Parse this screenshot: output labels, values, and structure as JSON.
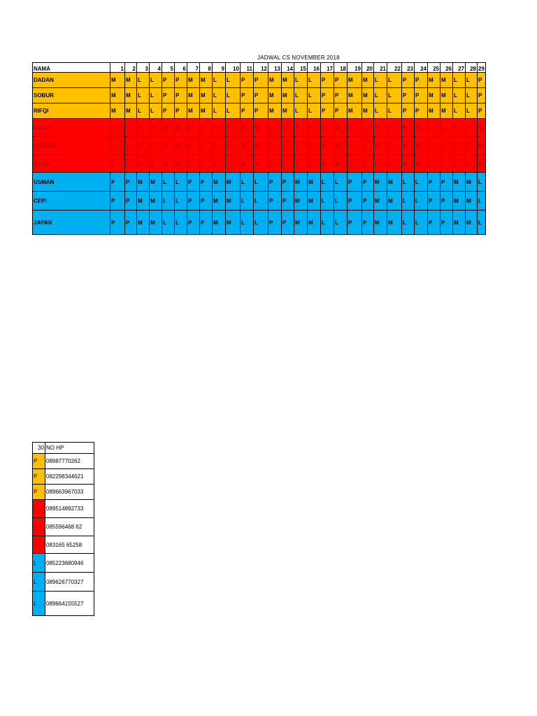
{
  "title": "JADWAL CS NOVEMBER 2018",
  "header": {
    "name_label": "NAMA",
    "days": [
      "1",
      "2",
      "3",
      "4",
      "5",
      "6",
      "7",
      "8",
      "9",
      "10",
      "11",
      "12",
      "13",
      "14",
      "15",
      "16",
      "17",
      "18",
      "19",
      "20",
      "21",
      "22",
      "23",
      "24",
      "25",
      "26",
      "27",
      "28",
      "29"
    ]
  },
  "colors": {
    "orange": "#ffc000",
    "red": "#ff0000",
    "blue": "#00b0f0"
  },
  "rows": [
    {
      "name": "DADAN",
      "color": "orange",
      "shifts": [
        "M",
        "M",
        "L",
        "L",
        "P",
        "P",
        "M",
        "M",
        "L",
        "L",
        "P",
        "P",
        "M",
        "M",
        "L",
        "L",
        "P",
        "P",
        "M",
        "M",
        "L",
        "L",
        "P",
        "P",
        "M",
        "M",
        "L",
        "L",
        "P"
      ]
    },
    {
      "name": "SOBUR",
      "color": "orange",
      "shifts": [
        "M",
        "M",
        "L",
        "L",
        "P",
        "P",
        "M",
        "M",
        "L",
        "L",
        "P",
        "P",
        "M",
        "M",
        "L",
        "L",
        "P",
        "P",
        "M",
        "M",
        "L",
        "L",
        "P",
        "P",
        "M",
        "M",
        "L",
        "L",
        "P"
      ]
    },
    {
      "name": "RIFQI",
      "color": "orange",
      "shifts": [
        "M",
        "M",
        "L",
        "L",
        "P",
        "P",
        "M",
        "M",
        "L",
        "L",
        "P",
        "P",
        "M",
        "M",
        "L",
        "L",
        "P",
        "P",
        "M",
        "M",
        "L",
        "L",
        "P",
        "P",
        "M",
        "M",
        "L",
        "L",
        "P"
      ]
    },
    {
      "name": "DENDI",
      "color": "red",
      "shifts": [
        "L",
        "L",
        "P",
        "P",
        "M",
        "M",
        "L",
        "L",
        "P",
        "P",
        "M",
        "M",
        "L",
        "L",
        "P",
        "P",
        "M",
        "M",
        "L",
        "L",
        "P",
        "P",
        "M",
        "M",
        "L",
        "L",
        "P",
        "P",
        "M"
      ]
    },
    {
      "name": "ENJANG",
      "color": "red",
      "shifts": [
        "L",
        "L",
        "P",
        "P",
        "M",
        "M",
        "L",
        "L",
        "P",
        "P",
        "M",
        "M",
        "L",
        "L",
        "P",
        "P",
        "M",
        "M",
        "L",
        "L",
        "P",
        "P",
        "M",
        "M",
        "L",
        "L",
        "P",
        "P",
        "M"
      ]
    },
    {
      "name": "AGUS",
      "color": "red",
      "shifts": [
        "L",
        "L",
        "P",
        "P",
        "M",
        "M",
        "L",
        "L",
        "P",
        "P",
        "M",
        "M",
        "L",
        "L",
        "P",
        "P",
        "M",
        "M",
        "L",
        "L",
        "P",
        "P",
        "M",
        "M",
        "L",
        "L",
        "P",
        "P",
        "M"
      ]
    },
    {
      "name": "USMAN",
      "color": "blue",
      "shifts": [
        "P",
        "P",
        "M",
        "M",
        "L",
        "L",
        "P",
        "P",
        "M",
        "M",
        "L",
        "L",
        "P",
        "P",
        "M",
        "M",
        "L",
        "L",
        "P",
        "P",
        "M",
        "M",
        "L",
        "L",
        "P",
        "P",
        "M",
        "M",
        "L"
      ]
    },
    {
      "name": "CEPI",
      "color": "blue",
      "shifts": [
        "P",
        "P",
        "M",
        "M",
        "L",
        "L",
        "P",
        "P",
        "M",
        "M",
        "L",
        "L",
        "P",
        "P",
        "M",
        "M",
        "L",
        "L",
        "P",
        "P",
        "M",
        "M",
        "L",
        "L",
        "P",
        "P",
        "M",
        "M",
        "L"
      ]
    },
    {
      "name": "JAPAR",
      "color": "blue",
      "shifts": [
        "P",
        "P",
        "M",
        "M",
        "L",
        "L",
        "P",
        "P",
        "M",
        "M",
        "L",
        "L",
        "P",
        "P",
        "M",
        "M",
        "L",
        "L",
        "P",
        "P",
        "M",
        "M",
        "L",
        "L",
        "P",
        "P",
        "M",
        "M",
        "L"
      ]
    }
  ],
  "phones_table": {
    "day_label": "30",
    "phone_label": "NO HP",
    "rows": [
      {
        "shift": "P",
        "color": "orange",
        "phone": "08987770262"
      },
      {
        "shift": "P",
        "color": "orange",
        "phone": "082298344621"
      },
      {
        "shift": "P",
        "color": "orange",
        "phone": "089663967033"
      },
      {
        "shift": "M",
        "color": "red",
        "phone": "089514892733"
      },
      {
        "shift": "M",
        "color": "red",
        "phone": "085596468 62"
      },
      {
        "shift": "M",
        "color": "red",
        "phone": "083165 65258"
      },
      {
        "shift": "L",
        "color": "blue",
        "phone": "085223680946"
      },
      {
        "shift": "L",
        "color": "blue",
        "phone": "089626770327"
      },
      {
        "shift": "L",
        "color": "blue",
        "phone": "089664155527"
      }
    ]
  }
}
